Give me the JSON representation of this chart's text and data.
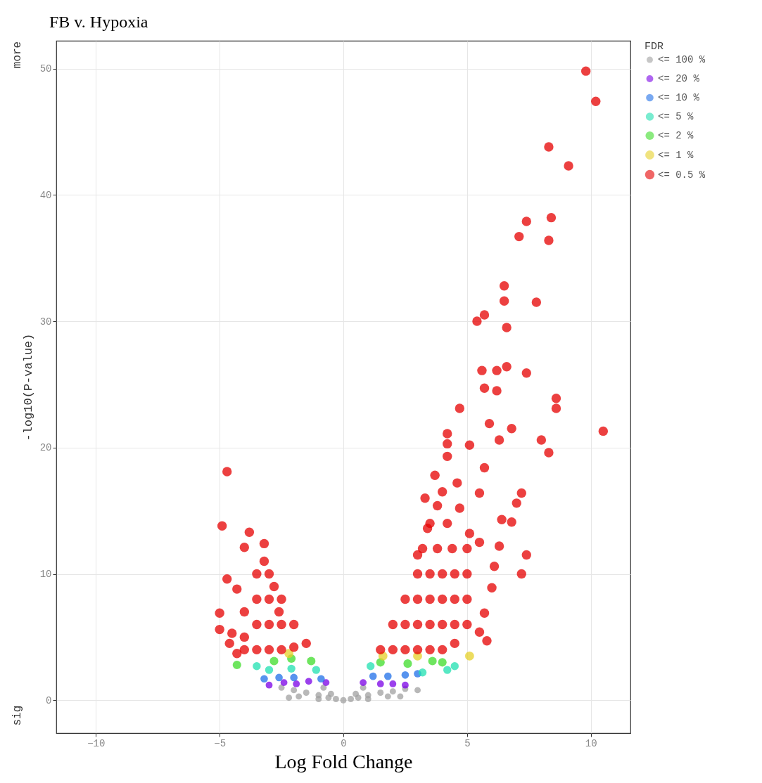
{
  "chart_data": {
    "type": "scatter",
    "title": "FB v. Hypoxia",
    "xlabel": "Log Fold Change",
    "ylabel": "-log10(P-value)",
    "legend_title": "FDR",
    "legend": "right",
    "grid": true,
    "marker": "circle",
    "xlim": [
      -11.6,
      11.6
    ],
    "ylim": [
      -2.6,
      52.2
    ],
    "xticks": [
      -10,
      -5,
      0,
      5,
      10
    ],
    "yticks": [
      0,
      10,
      20,
      30,
      40,
      50
    ],
    "annotations": [
      "more",
      "sig"
    ],
    "series": [
      {
        "name": "<= 100 %",
        "color": "#a0a0a0",
        "x": [
          0,
          -0.3,
          0.3,
          -0.6,
          0.6,
          -1,
          1,
          -1.5,
          1.5,
          -2,
          2,
          -2.5,
          2.5,
          -1,
          1,
          -1.8,
          1.8,
          -0.5,
          0.5,
          -0.8,
          0.8,
          -2.2,
          2.3,
          3.0
        ],
        "values": [
          0,
          0.1,
          0.1,
          0.2,
          0.2,
          0.4,
          0.4,
          0.6,
          0.6,
          0.8,
          0.7,
          1.0,
          0.9,
          0.1,
          0.1,
          0.3,
          0.3,
          0.5,
          0.5,
          1.0,
          1.0,
          0.2,
          0.3,
          0.8
        ]
      },
      {
        "name": "<= 20 %",
        "color": "#7a00e6",
        "x": [
          -2.4,
          -1.4,
          -0.7,
          0.8,
          2.0,
          2.5,
          -3.0,
          -1.9,
          1.5
        ],
        "values": [
          1.4,
          1.5,
          1.4,
          1.4,
          1.3,
          1.2,
          1.2,
          1.3,
          1.3
        ]
      },
      {
        "name": "<= 10 %",
        "color": "#1f6fe8",
        "x": [
          -3.2,
          -2.0,
          -0.9,
          1.2,
          2.5,
          3.0,
          -2.6,
          1.8
        ],
        "values": [
          1.7,
          1.8,
          1.7,
          1.9,
          2.0,
          2.1,
          1.8,
          1.9
        ]
      },
      {
        "name": "<= 5 %",
        "color": "#1fe0b0",
        "x": [
          -3.5,
          -2.1,
          -1.1,
          1.1,
          4.5,
          4.2,
          3.2,
          -3.0
        ],
        "values": [
          2.7,
          2.5,
          2.4,
          2.7,
          2.7,
          2.4,
          2.2,
          2.4
        ]
      },
      {
        "name": "<= 2 %",
        "color": "#3ddc2a",
        "x": [
          -2.1,
          -1.3,
          -4.3,
          -2.8,
          1.5,
          3.6,
          2.6,
          4.0
        ],
        "values": [
          3.3,
          3.1,
          2.8,
          3.1,
          3.0,
          3.1,
          2.9,
          3.0
        ]
      },
      {
        "name": "<= 1 %",
        "color": "#e6d02a",
        "x": [
          -2.2,
          3.0,
          1.6,
          5.1
        ],
        "values": [
          3.7,
          3.5,
          3.5,
          3.5
        ]
      },
      {
        "name": "<= 0.5 %",
        "color": "#e60000",
        "x": [
          9.8,
          10.2,
          8.3,
          9.1,
          7.4,
          8.4,
          7.1,
          8.3,
          6.5,
          6.5,
          7.8,
          5.7,
          5.4,
          6.6,
          5.6,
          6.6,
          7.4,
          6.2,
          5.7,
          6.2,
          4.7,
          8.6,
          8.6,
          5.9,
          6.8,
          10.5,
          8.0,
          8.3,
          4.2,
          4.2,
          4.2,
          5.1,
          6.3,
          5.7,
          3.7,
          7.2,
          7.0,
          6.8,
          6.4,
          7.4,
          7.2,
          6.3,
          6.1,
          6.0,
          5.7,
          5.8,
          5.5,
          5.5,
          5.5,
          5.1,
          4.7,
          3.8,
          3.4,
          3.0,
          1.5,
          2,
          2.5,
          3,
          3.5,
          4,
          4.5,
          2,
          2.5,
          3,
          3.5,
          4,
          4.5,
          5,
          2.5,
          3,
          3.5,
          4,
          4.5,
          5,
          3,
          3.5,
          4,
          4.5,
          5,
          3.2,
          3.8,
          4.4,
          5,
          3.5,
          4.2,
          3.3,
          4,
          4.6,
          -4.7,
          -4.9,
          -3.8,
          -3.2,
          -4.0,
          -4.7,
          -4.3,
          -5.0,
          -5.0,
          -4.5,
          -4.6,
          -4.3,
          -3.5,
          -3,
          -2.5,
          -3,
          -3.5,
          -4,
          -2,
          -2.5,
          -3,
          -3.5,
          -4,
          -1.5,
          -2,
          -2.5,
          -3,
          -3.5,
          -4,
          -2.8,
          -3.2,
          -2.6
        ],
        "values": [
          49.8,
          47.4,
          43.8,
          42.3,
          37.9,
          38.2,
          36.7,
          36.4,
          32.8,
          31.6,
          31.5,
          30.5,
          30.0,
          29.5,
          26.1,
          26.4,
          25.9,
          26.1,
          24.7,
          24.5,
          23.1,
          23.9,
          23.1,
          21.9,
          21.5,
          21.3,
          20.6,
          19.6,
          21.1,
          20.3,
          19.3,
          20.2,
          20.6,
          18.4,
          17.8,
          16.4,
          15.6,
          14.1,
          14.3,
          11.5,
          10.0,
          12.2,
          10.6,
          8.9,
          6.9,
          4.7,
          5.4,
          16.4,
          12.5,
          13.2,
          15.2,
          15.4,
          13.6,
          11.5,
          4,
          4,
          4,
          4,
          4,
          4,
          4.5,
          6,
          6,
          6,
          6,
          6,
          6,
          6,
          8,
          8,
          8,
          8,
          8,
          8,
          10,
          10,
          10,
          10,
          10,
          12,
          12,
          12,
          12,
          14,
          14,
          16,
          16.5,
          17.2,
          18.1,
          13.8,
          13.3,
          12.4,
          12.1,
          9.6,
          8.8,
          6.9,
          5.6,
          5.3,
          4.5,
          3.7,
          10,
          10,
          8,
          8,
          8,
          7,
          6,
          6,
          6,
          6,
          5,
          4.5,
          4.2,
          4,
          4,
          4,
          4,
          9,
          11,
          7
        ]
      }
    ]
  }
}
